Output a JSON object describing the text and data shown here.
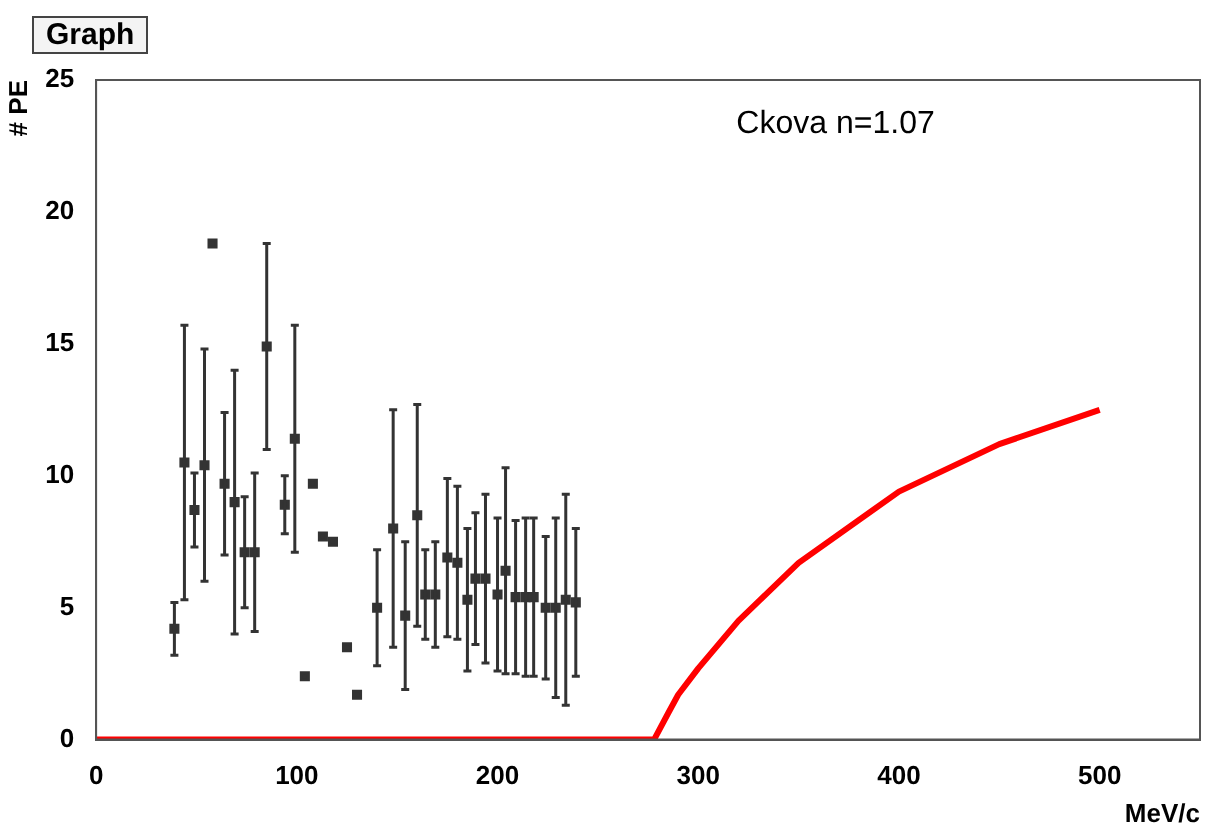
{
  "chart_data": {
    "type": "scatter",
    "title": "Graph",
    "xlabel": "MeV/c",
    "ylabel": "# PE",
    "annotations": [
      "Ckova n=1.07"
    ],
    "xlim": [
      0,
      550
    ],
    "xticks": [
      0,
      100,
      200,
      300,
      400,
      500
    ],
    "ylim": [
      0,
      25
    ],
    "yticks": [
      0,
      5,
      10,
      15,
      20,
      25
    ],
    "grid": false,
    "legend": false,
    "marker": "square",
    "series": [
      {
        "color": "#333333",
        "x": [
          39,
          44,
          49,
          54,
          58,
          64,
          69,
          74,
          79,
          85,
          94,
          99,
          104,
          108,
          113,
          118,
          125,
          130,
          140,
          148,
          154,
          160,
          164,
          169,
          175,
          180,
          185,
          189,
          194,
          200,
          204,
          209,
          214,
          218,
          224,
          229,
          234,
          239
        ],
        "values": [
          4.2,
          10.5,
          8.7,
          10.4,
          18.8,
          9.7,
          9.0,
          7.1,
          7.1,
          14.9,
          8.9,
          11.4,
          2.4,
          9.7,
          7.7,
          7.5,
          3.5,
          1.7,
          5.0,
          8.0,
          4.7,
          8.5,
          5.5,
          5.5,
          6.9,
          6.7,
          5.3,
          6.1,
          6.1,
          5.5,
          6.4,
          5.4,
          5.4,
          5.4,
          5.0,
          5.0,
          5.3,
          5.2
        ],
        "errors": [
          1,
          5.2,
          1.4,
          4.4,
          null,
          2.7,
          5,
          2.1,
          3,
          3.9,
          1.1,
          4.3,
          null,
          null,
          null,
          null,
          null,
          null,
          2.2,
          4.5,
          2.8,
          4.2,
          1.7,
          2,
          3,
          2.9,
          2.7,
          2.5,
          3.2,
          2.9,
          3.9,
          2.9,
          3,
          3,
          2.7,
          3.4,
          4,
          2.8
        ]
      },
      {
        "type": "line",
        "color": "#ff0000",
        "marker": "none",
        "x": [
          0,
          278,
          285,
          290,
          300,
          320,
          350,
          400,
          450,
          500
        ],
        "values": [
          0,
          0,
          1.0,
          1.7,
          2.7,
          4.5,
          6.7,
          9.4,
          11.2,
          12.5
        ]
      }
    ]
  }
}
